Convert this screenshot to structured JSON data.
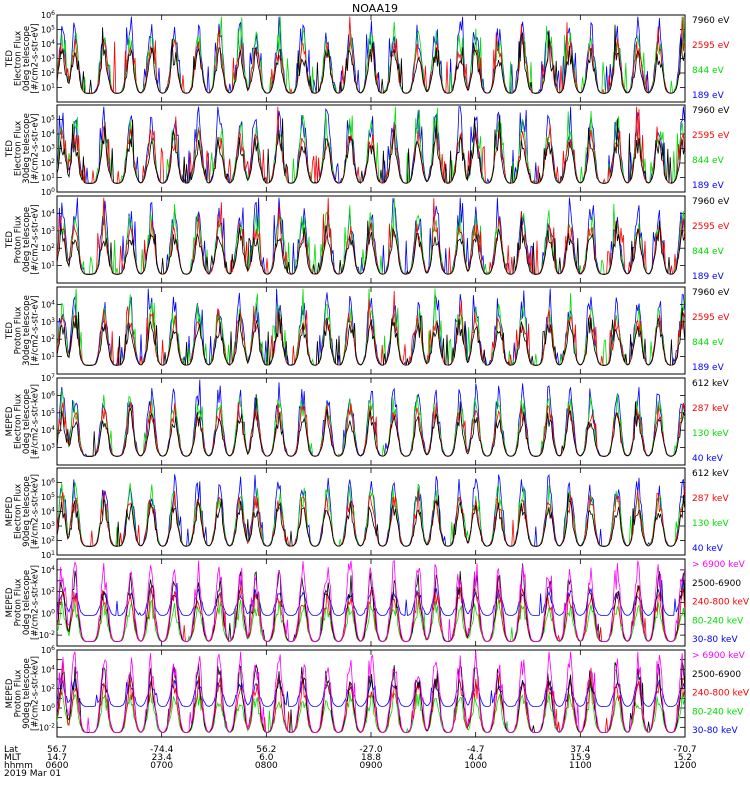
{
  "chart_data": {
    "type": "line",
    "title": "NOAA19",
    "date_label": "2019 Mar 01",
    "x_axis": {
      "row_labels": [
        "Lat",
        "MLT",
        "hhmm"
      ],
      "ticks": [
        {
          "lat": "56.7",
          "mlt": "14.7",
          "hhmm": "0600"
        },
        {
          "lat": "-74.4",
          "mlt": "23.4",
          "hhmm": "0700"
        },
        {
          "lat": "56.2",
          "mlt": "6.0",
          "hhmm": "0800"
        },
        {
          "lat": "-27.0",
          "mlt": "18.8",
          "hhmm": "0900"
        },
        {
          "lat": "-4.7",
          "mlt": "4.4",
          "hhmm": "1000"
        },
        {
          "lat": "37.4",
          "mlt": "15.9",
          "hhmm": "1100"
        },
        {
          "lat": "-70.7",
          "mlt": "5.2",
          "hhmm": "1200"
        }
      ],
      "range_hours": [
        6,
        12
      ]
    },
    "panels": [
      {
        "ylabel": [
          "TED",
          "Electron Flux",
          "0deg telescope",
          "[#/cm2-s-str-eV]"
        ],
        "ylim_exp": [
          0,
          6
        ],
        "ytick_exps": [
          1,
          2,
          3,
          4,
          5,
          6
        ],
        "kind": "ted_e",
        "legend": [
          {
            "label": "7960 eV",
            "color": "#000000"
          },
          {
            "label": "2595 eV",
            "color": "#ff0000"
          },
          {
            "label": "844 eV",
            "color": "#00dd00"
          },
          {
            "label": "189 eV",
            "color": "#0000ff"
          }
        ]
      },
      {
        "ylabel": [
          "TED",
          "Electron Flux",
          "30deg telescope",
          "[#/cm2-s-str-eV]"
        ],
        "ylim_exp": [
          0,
          6
        ],
        "ytick_exps": [
          0,
          1,
          2,
          3,
          4,
          5
        ],
        "kind": "ted_e",
        "legend": [
          {
            "label": "7960 eV",
            "color": "#000000"
          },
          {
            "label": "2595 eV",
            "color": "#ff0000"
          },
          {
            "label": "844 eV",
            "color": "#00dd00"
          },
          {
            "label": "189 eV",
            "color": "#0000ff"
          }
        ]
      },
      {
        "ylabel": [
          "TED",
          "Proton Flux",
          "0deg telescope",
          "[#/cm2-s-str-eV]"
        ],
        "ylim_exp": [
          0,
          5
        ],
        "ytick_exps": [
          1,
          2,
          3,
          4
        ],
        "kind": "ted_p",
        "legend": [
          {
            "label": "7960 eV",
            "color": "#000000"
          },
          {
            "label": "2595 eV",
            "color": "#ff0000"
          },
          {
            "label": "844 eV",
            "color": "#00dd00"
          },
          {
            "label": "189 eV",
            "color": "#0000ff"
          }
        ]
      },
      {
        "ylabel": [
          "TED",
          "Proton Flux",
          "30deg telescope",
          "[#/cm2-s-str-eV]"
        ],
        "ylim_exp": [
          0,
          5
        ],
        "ytick_exps": [
          1,
          2,
          3,
          4
        ],
        "kind": "ted_p",
        "legend": [
          {
            "label": "7960 eV",
            "color": "#000000"
          },
          {
            "label": "2595 eV",
            "color": "#ff0000"
          },
          {
            "label": "844 eV",
            "color": "#00dd00"
          },
          {
            "label": "189 eV",
            "color": "#0000ff"
          }
        ]
      },
      {
        "ylabel": [
          "MEPED",
          "Electron Flux",
          "0deg telescope",
          "[#/cm2-s-str-keV]"
        ],
        "ylim_exp": [
          2,
          7
        ],
        "ytick_exps": [
          3,
          4,
          5,
          6,
          7
        ],
        "kind": "mep_e",
        "legend": [
          {
            "label": "612 keV",
            "color": "#000000"
          },
          {
            "label": "287 keV",
            "color": "#ff0000"
          },
          {
            "label": "130 keV",
            "color": "#00dd00"
          },
          {
            "label": "40 keV",
            "color": "#0000ff"
          }
        ]
      },
      {
        "ylabel": [
          "MEPED",
          "Electron Flux",
          "90deg telescope",
          "[#/cm2-s-str-keV]"
        ],
        "ylim_exp": [
          1,
          7
        ],
        "ytick_exps": [
          1,
          2,
          3,
          4,
          5,
          6
        ],
        "kind": "mep_e",
        "legend": [
          {
            "label": "612 keV",
            "color": "#000000"
          },
          {
            "label": "287 keV",
            "color": "#ff0000"
          },
          {
            "label": "130 keV",
            "color": "#00dd00"
          },
          {
            "label": "40 keV",
            "color": "#0000ff"
          }
        ]
      },
      {
        "ylabel": [
          "MEPED",
          "Proton Flux",
          "0deg telescope",
          "[#/cm2-s-str-keV]"
        ],
        "ylim_exp": [
          -3,
          5
        ],
        "ytick_exps": [
          -2,
          0,
          2,
          4
        ],
        "kind": "mep_p",
        "legend": [
          {
            "label": "> 6900 keV",
            "color": "#ff00ff"
          },
          {
            "label": "2500-6900",
            "color": "#000000"
          },
          {
            "label": "240-800 keV",
            "color": "#ff0000"
          },
          {
            "label": "80-240 keV",
            "color": "#00dd00"
          },
          {
            "label": "30-80 keV",
            "color": "#0000ff"
          }
        ]
      },
      {
        "ylabel": [
          "MEPED",
          "Proton Flux",
          "90deg telescope",
          "[#/cm2-s-str-keV]"
        ],
        "ylim_exp": [
          -3,
          6
        ],
        "ytick_exps": [
          -2,
          0,
          2,
          4,
          6
        ],
        "kind": "mep_p",
        "legend": [
          {
            "label": "> 6900 keV",
            "color": "#ff00ff"
          },
          {
            "label": "2500-6900",
            "color": "#000000"
          },
          {
            "label": "240-800 keV",
            "color": "#ff0000"
          },
          {
            "label": "80-240 keV",
            "color": "#00dd00"
          },
          {
            "label": "30-80 keV",
            "color": "#0000ff"
          }
        ]
      }
    ]
  }
}
